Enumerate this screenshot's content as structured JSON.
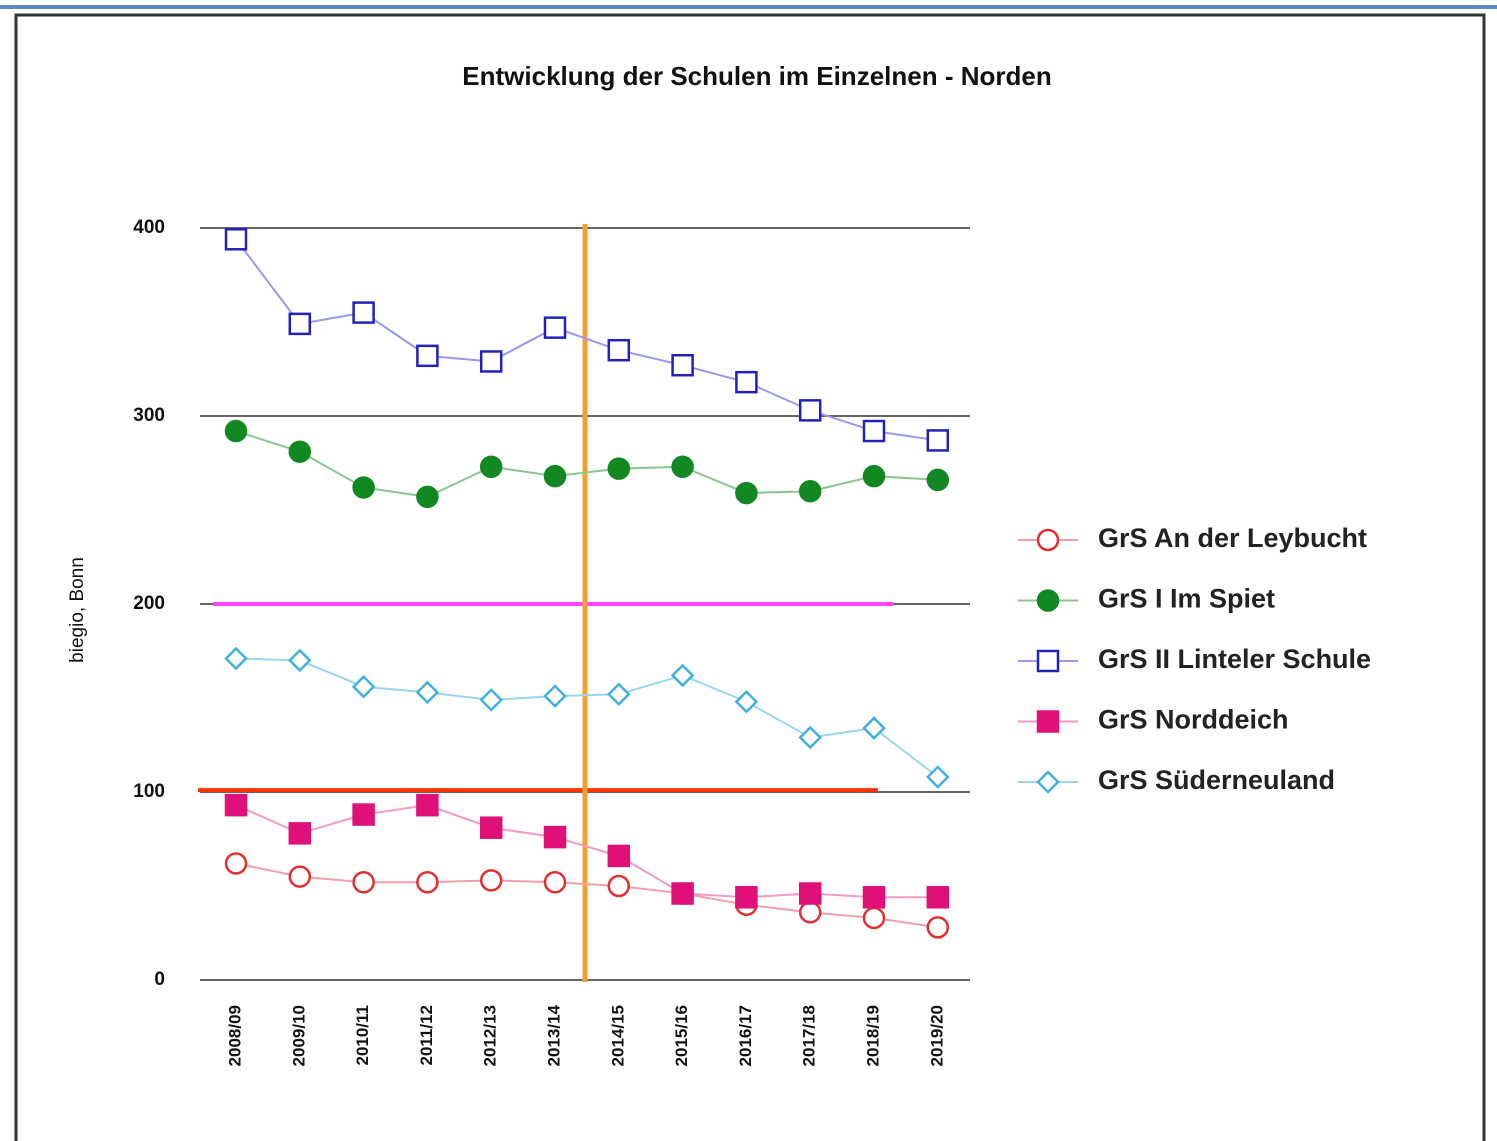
{
  "chart_data": {
    "type": "line",
    "title": "Entwicklung der Schulen im Einzelnen - Norden",
    "y_label": "biegio, Bonn",
    "categories": [
      "2008/09",
      "2009/10",
      "2010/11",
      "2011/12",
      "2012/13",
      "2013/14",
      "2014/15",
      "2015/16",
      "2016/17",
      "2017/18",
      "2018/19",
      "2019/20"
    ],
    "ylim": [
      0,
      400
    ],
    "yticks": [
      0,
      100,
      200,
      300,
      400
    ],
    "grid": true,
    "hlines": [
      {
        "value": 200,
        "color": "#ff44ff"
      },
      {
        "value": 101,
        "color": "#ff3300"
      }
    ],
    "series": [
      {
        "name": "GrS An der Leybucht",
        "color": "#e03030",
        "line_color": "#f2a0a8",
        "marker": "circle-open",
        "values": [
          62,
          55,
          52,
          52,
          53,
          52,
          50,
          46,
          40,
          36,
          33,
          28
        ]
      },
      {
        "name": "GrS I Im Spiet",
        "color": "#118822",
        "line_color": "#88c890",
        "marker": "circle-filled",
        "values": [
          292,
          281,
          262,
          257,
          273,
          268,
          272,
          273,
          259,
          260,
          268,
          266
        ]
      },
      {
        "name": "GrS II Linteler Schule",
        "color": "#2222bb",
        "line_color": "#9a9ae8",
        "marker": "square-open",
        "values": [
          394,
          349,
          355,
          332,
          329,
          347,
          335,
          327,
          318,
          303,
          292,
          287
        ]
      },
      {
        "name": "GrS Norddeich",
        "color": "#e0107a",
        "line_color": "#f29ac8",
        "marker": "square-filled",
        "values": [
          93,
          78,
          88,
          93,
          81,
          76,
          66,
          46,
          44,
          46,
          44,
          44
        ]
      },
      {
        "name": "GrS Süderneuland",
        "color": "#40b0e0",
        "line_color": "#9ad6f0",
        "marker": "diamond-open",
        "values": [
          171,
          170,
          156,
          153,
          149,
          151,
          152,
          162,
          148,
          129,
          134,
          108
        ]
      }
    ]
  }
}
